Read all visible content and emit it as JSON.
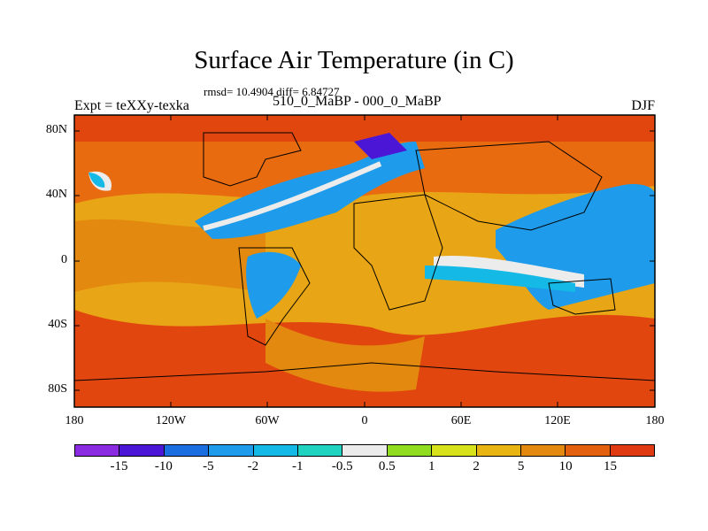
{
  "header": {
    "title": "Surface Air Temperature (in C)",
    "stats": "rmsd= 10.4904 diff= 6.84727",
    "experiment": "Expt = teXXy-texka",
    "comparison": "510_0_MaBP - 000_0_MaBP",
    "season": "DJF"
  },
  "axes": {
    "y_labels": [
      "80N",
      "40N",
      "0",
      "40S",
      "80S"
    ],
    "x_labels": [
      "180",
      "120W",
      "60W",
      "0",
      "60E",
      "120E",
      "180"
    ]
  },
  "colorbar": {
    "colors": [
      "#8a2be2",
      "#4b16d6",
      "#1a6ee0",
      "#1e9bea",
      "#14b9e6",
      "#20d2c0",
      "#ececec",
      "#8fdd1e",
      "#d8e21a",
      "#e8b412",
      "#e3890f",
      "#e2600e",
      "#e03a12"
    ],
    "labels": [
      "-15",
      "-10",
      "-5",
      "-2",
      "-1",
      "-0.5",
      "0.5",
      "1",
      "2",
      "5",
      "10",
      "15"
    ]
  },
  "map": {
    "background_color": "#e86b10",
    "ocean_warm": "#e2460f",
    "land_mid": "#e8a515",
    "cool_blue": "#1e9bea",
    "cold_blue": "#1a6ee0",
    "coldest": "#4b16d6",
    "neutral": "#ececec"
  }
}
